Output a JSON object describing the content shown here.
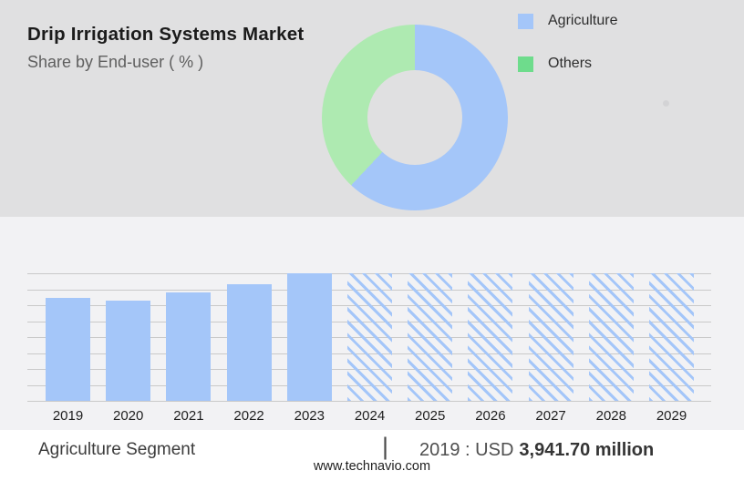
{
  "report": {
    "title": "Drip Irrigation Systems Market",
    "subtitle": "Share by End-user ( % )"
  },
  "colors": {
    "bar_blue": "#a4c6f9",
    "donut_blue": "#a4c6f9",
    "donut_green": "#aeeab1",
    "legend_green": "#6edc8c",
    "band_bg": "#e0e0e1",
    "chart_bg": "#f2f2f4",
    "gridline": "#c9c9c9"
  },
  "chart_data": [
    {
      "type": "pie",
      "donut": true,
      "title": "Share by End-user ( % )",
      "labels": [
        "Agriculture",
        "Others"
      ],
      "values": [
        62,
        38
      ],
      "unit": "%",
      "note": "values estimated from slice angles; Agriculture slice starts at 12 o'clock going clockwise",
      "legend_position": "right",
      "legend": [
        {
          "label": "Agriculture",
          "color": "#a4c6f9"
        },
        {
          "label": "Others",
          "color": "#6edc8c"
        }
      ]
    },
    {
      "type": "bar",
      "categories": [
        "2019",
        "2020",
        "2021",
        "2022",
        "2023",
        "2024",
        "2025",
        "2026",
        "2027",
        "2028",
        "2029"
      ],
      "values": [
        3941.7,
        3835,
        4150,
        4455,
        4880,
        4880,
        4880,
        4880,
        4880,
        4880,
        4880
      ],
      "value_unit": "USD million",
      "value_note": "only 2019 is labeled (USD 3,941.70 million); other values estimated from bar heights; 2024-2029 drawn as full-height hatched forecast bars",
      "forecast_start_index": 5,
      "ylim": [
        0,
        4880
      ],
      "gridline_count": 9,
      "grid": true,
      "xlabel": "",
      "ylabel": ""
    }
  ],
  "caption": {
    "segment_label": "Agriculture Segment",
    "divider": "|",
    "value_prefix": "2019 : USD",
    "value_bold": "3,941.70 million"
  },
  "footer": {
    "url": "www.technavio.com"
  }
}
